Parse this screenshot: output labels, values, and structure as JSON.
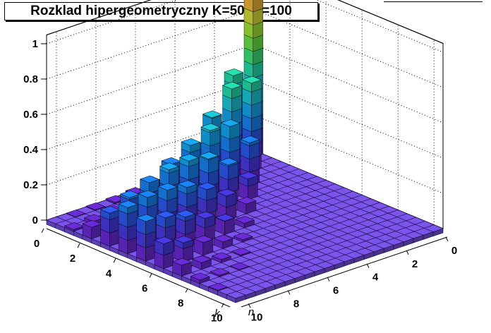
{
  "window": {
    "title": "Rozklad hipergeometryczny K=50, N=100"
  },
  "chart_data": {
    "type": "lego3d",
    "title": "Rozklad hipergeometryczny K=50, N=100",
    "xlabel": "k",
    "ylabel": "n",
    "zlim": [
      0,
      1.05
    ],
    "xlim": [
      0,
      10.5
    ],
    "ylim": [
      0,
      10.5
    ],
    "bin_width": 0.5,
    "grid": true,
    "z_ticks": [
      "0",
      "0.2",
      "0.4",
      "0.6",
      "0.8",
      "1"
    ],
    "k_ticks": [
      "0",
      "2",
      "4",
      "6",
      "8",
      "10"
    ],
    "n_ticks": [
      "0",
      "2",
      "4",
      "6",
      "8",
      "10"
    ],
    "palette": [
      "#6b2bd9",
      "#4a3ae6",
      "#2e5cf5",
      "#1a86f8",
      "#16aaf5",
      "#1cccde",
      "#25e2b0",
      "#3ee67a",
      "#6ee64a",
      "#a6e83a",
      "#d9e23a",
      "#f5b83a",
      "#f57a2e",
      "#ee3a22"
    ],
    "floor_color": "#7b55ea",
    "values": [
      [
        1.0,
        0.5,
        0.253,
        0.127,
        0.063,
        0.031,
        0.016,
        0.008,
        0.004,
        0.002,
        0.001
      ],
      [
        0,
        0.5,
        0.505,
        0.38,
        0.253,
        0.158,
        0.095,
        0.055,
        0.031,
        0.018,
        0.01
      ],
      [
        0,
        0,
        0.242,
        0.372,
        0.387,
        0.34,
        0.27,
        0.201,
        0.143,
        0.098,
        0.065
      ],
      [
        0,
        0,
        0,
        0.117,
        0.234,
        0.306,
        0.332,
        0.32,
        0.284,
        0.237,
        0.187
      ],
      [
        0,
        0,
        0,
        0,
        0.055,
        0.138,
        0.212,
        0.262,
        0.284,
        0.281,
        0.261
      ],
      [
        0,
        0,
        0,
        0,
        0,
        0.026,
        0.076,
        0.128,
        0.174,
        0.207,
        0.225
      ],
      [
        0,
        0,
        0,
        0,
        0,
        0,
        0.012,
        0.038,
        0.072,
        0.108,
        0.14
      ],
      [
        0,
        0,
        0,
        0,
        0,
        0,
        0,
        0.006,
        0.018,
        0.038,
        0.061
      ],
      [
        0,
        0,
        0,
        0,
        0,
        0,
        0,
        0,
        0.003,
        0.009,
        0.02
      ],
      [
        0,
        0,
        0,
        0,
        0,
        0,
        0,
        0,
        0,
        0.001,
        0.004
      ],
      [
        0,
        0,
        0,
        0,
        0,
        0,
        0,
        0,
        0,
        0,
        0.0004
      ]
    ]
  }
}
